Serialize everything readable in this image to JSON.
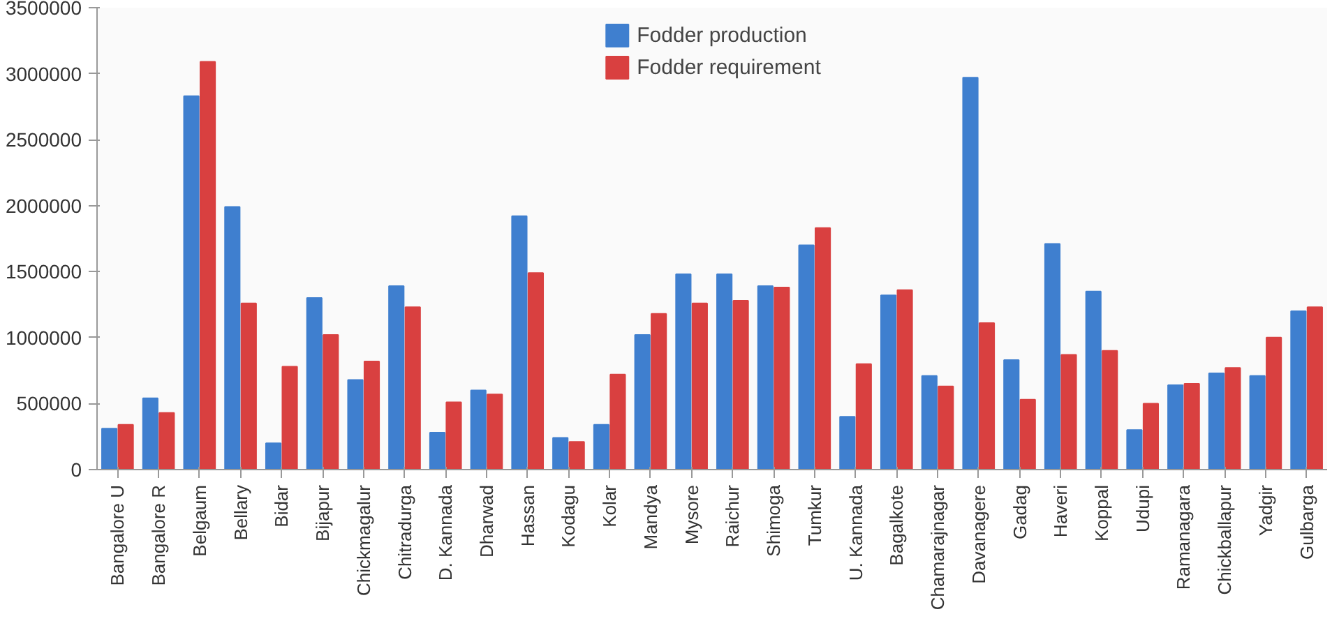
{
  "chart_data": {
    "type": "bar",
    "categories": [
      "Bangalore U",
      "Bangalore R",
      "Belgaum",
      "Bellary",
      "Bidar",
      "Bijapur",
      "Chickmagalur",
      "Chitradurga",
      "D. Kannada",
      "Dharwad",
      "Hassan",
      "Kodagu",
      "Kolar",
      "Mandya",
      "Mysore",
      "Raichur",
      "Shimoga",
      "Tumkur",
      "U. Kannada",
      "Bagalkote",
      "Chamarajnagar",
      "Davanagere",
      "Gadag",
      "Haveri",
      "Koppal",
      "Udupi",
      "Ramanagara",
      "Chickballapur",
      "Yadgir",
      "Gulbarga"
    ],
    "series": [
      {
        "name": "Fodder production",
        "color": "#3f7fcf",
        "values": [
          310000,
          540000,
          2830000,
          1990000,
          200000,
          1300000,
          680000,
          1390000,
          280000,
          600000,
          1920000,
          240000,
          340000,
          1020000,
          1480000,
          1480000,
          1390000,
          1700000,
          400000,
          1320000,
          710000,
          2970000,
          830000,
          1710000,
          1350000,
          300000,
          640000,
          730000,
          710000,
          1200000
        ]
      },
      {
        "name": "Fodder requirement",
        "color": "#d94040",
        "values": [
          340000,
          430000,
          3090000,
          1260000,
          780000,
          1020000,
          820000,
          1230000,
          510000,
          570000,
          1490000,
          210000,
          720000,
          1180000,
          1260000,
          1280000,
          1380000,
          1830000,
          800000,
          1360000,
          630000,
          1110000,
          530000,
          870000,
          900000,
          500000,
          650000,
          770000,
          1000000,
          1230000
        ]
      }
    ],
    "ylim": [
      0,
      3500000
    ],
    "yticks": [
      0,
      500000,
      1000000,
      1500000,
      2000000,
      2500000,
      3000000,
      3500000
    ],
    "grid": false,
    "legend": "top"
  }
}
